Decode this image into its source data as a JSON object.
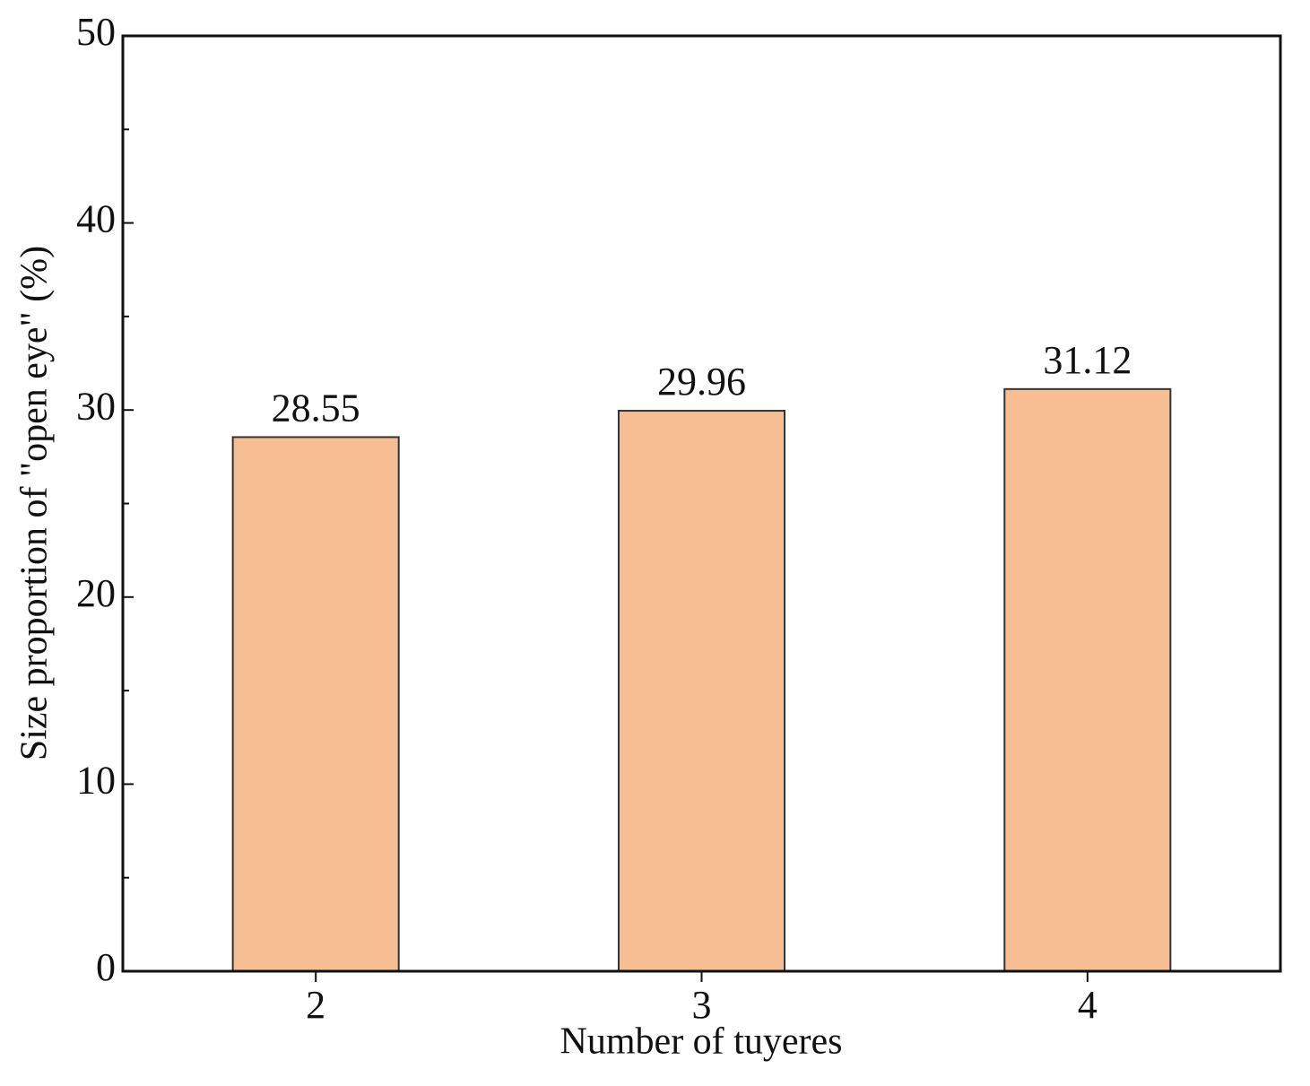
{
  "chart_data": {
    "type": "bar",
    "x_label": "Number of tuyeres",
    "y_label": "Size proportion of \"open eye\" (%)",
    "categories": [
      "2",
      "3",
      "4"
    ],
    "values": [
      28.55,
      29.96,
      31.12
    ],
    "color": "#f7be94",
    "ylim": [
      0,
      50
    ],
    "yticks": [
      0,
      10,
      20,
      30,
      40,
      50
    ],
    "minor_yticks": [
      5,
      15,
      25,
      35,
      45
    ],
    "grid": false
  }
}
